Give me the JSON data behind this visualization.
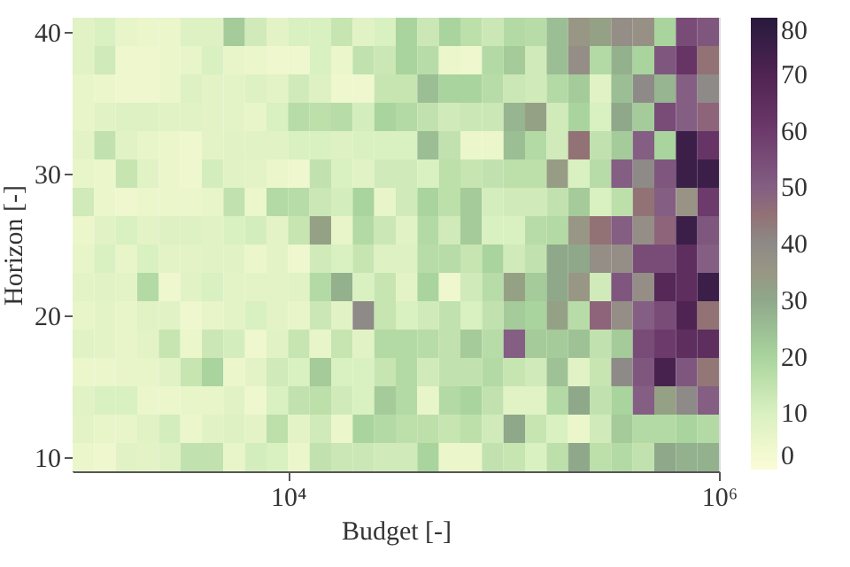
{
  "chart_data": {
    "type": "heatmap",
    "xlabel": "Budget [-]",
    "ylabel": "Horizon [-]",
    "log": "x",
    "x": [
      1122,
      1413,
      1778,
      2239,
      2818,
      3548,
      4467,
      5623,
      7079,
      8913,
      11220,
      14130,
      17780,
      22390,
      28180,
      35480,
      44670,
      56230,
      70790,
      89130,
      112200,
      141300,
      177800,
      223900,
      281800,
      354800,
      446700,
      562300,
      707900,
      891300
    ],
    "y": [
      40,
      38,
      36,
      34,
      32,
      30,
      28,
      26,
      24,
      22,
      20,
      18,
      16,
      14,
      12,
      10
    ],
    "xlim": [
      1000,
      1000000
    ],
    "xticks": [
      {
        "value": 10000,
        "label": "10⁴"
      },
      {
        "value": 1000000,
        "label": "10⁶"
      }
    ],
    "ylim": [
      9,
      41
    ],
    "yticks": [
      10,
      20,
      30,
      40
    ],
    "clim": [
      0,
      80
    ],
    "cticks": [
      0,
      10,
      20,
      30,
      40,
      50,
      60,
      70,
      80
    ],
    "grid": false,
    "cells": [
      [
        8,
        10,
        6,
        5,
        5,
        9,
        9,
        22,
        12,
        7,
        10,
        10,
        14,
        8,
        10,
        20,
        13,
        20,
        16,
        13,
        18,
        17,
        25,
        35,
        32,
        38,
        37,
        20,
        55,
        52
      ],
      [
        8,
        12,
        4,
        4,
        5,
        6,
        10,
        6,
        5,
        4,
        4,
        10,
        5,
        15,
        13,
        20,
        17,
        5,
        4,
        18,
        22,
        12,
        25,
        38,
        18,
        28,
        20,
        52,
        62,
        45
      ],
      [
        6,
        5,
        4,
        4,
        5,
        9,
        7,
        7,
        9,
        7,
        12,
        9,
        4,
        4,
        14,
        14,
        25,
        20,
        20,
        17,
        13,
        12,
        18,
        22,
        8,
        25,
        40,
        27,
        50,
        40
      ],
      [
        6,
        8,
        9,
        9,
        8,
        8,
        7,
        7,
        6,
        10,
        17,
        16,
        17,
        11,
        20,
        18,
        15,
        12,
        13,
        13,
        27,
        32,
        12,
        20,
        10,
        30,
        22,
        55,
        50,
        48
      ],
      [
        7,
        15,
        8,
        6,
        5,
        4,
        7,
        8,
        8,
        8,
        10,
        10,
        9,
        10,
        10,
        10,
        25,
        15,
        5,
        5,
        25,
        18,
        12,
        45,
        15,
        22,
        50,
        20,
        75,
        62
      ],
      [
        6,
        5,
        14,
        8,
        5,
        4,
        11,
        8,
        7,
        5,
        4,
        15,
        10,
        8,
        12,
        12,
        10,
        16,
        14,
        15,
        16,
        16,
        33,
        10,
        17,
        50,
        40,
        52,
        75,
        75
      ],
      [
        12,
        5,
        4,
        5,
        5,
        5,
        6,
        15,
        5,
        18,
        17,
        13,
        11,
        20,
        6,
        12,
        20,
        16,
        22,
        11,
        12,
        12,
        15,
        22,
        10,
        16,
        45,
        50,
        36,
        60
      ],
      [
        5,
        8,
        10,
        7,
        9,
        9,
        8,
        10,
        11,
        7,
        14,
        32,
        6,
        18,
        13,
        8,
        18,
        12,
        22,
        10,
        10,
        17,
        18,
        35,
        45,
        50,
        38,
        48,
        75,
        52
      ],
      [
        6,
        10,
        6,
        10,
        7,
        7,
        8,
        8,
        5,
        7,
        4,
        12,
        10,
        14,
        9,
        9,
        17,
        17,
        14,
        20,
        12,
        15,
        30,
        30,
        38,
        38,
        55,
        55,
        65,
        50
      ],
      [
        7,
        8,
        7,
        18,
        4,
        8,
        10,
        7,
        7,
        7,
        8,
        18,
        28,
        10,
        14,
        7,
        20,
        4,
        12,
        17,
        32,
        22,
        30,
        35,
        12,
        52,
        38,
        68,
        65,
        75
      ],
      [
        6,
        7,
        6,
        8,
        8,
        4,
        6,
        7,
        10,
        7,
        6,
        13,
        8,
        40,
        14,
        10,
        12,
        15,
        10,
        15,
        22,
        20,
        32,
        17,
        48,
        38,
        50,
        55,
        70,
        45
      ],
      [
        8,
        7,
        6,
        7,
        14,
        5,
        13,
        11,
        4,
        8,
        14,
        6,
        14,
        8,
        18,
        18,
        17,
        15,
        22,
        17,
        50,
        22,
        22,
        24,
        15,
        22,
        55,
        60,
        65,
        65
      ],
      [
        5,
        5,
        6,
        6,
        8,
        14,
        20,
        5,
        7,
        12,
        10,
        22,
        10,
        10,
        14,
        18,
        12,
        15,
        15,
        18,
        14,
        12,
        24,
        8,
        14,
        40,
        52,
        72,
        52,
        44
      ],
      [
        8,
        10,
        10,
        5,
        5,
        6,
        6,
        8,
        4,
        10,
        15,
        16,
        12,
        10,
        22,
        18,
        6,
        18,
        20,
        15,
        8,
        8,
        18,
        30,
        15,
        20,
        50,
        32,
        40,
        50
      ],
      [
        7,
        6,
        6,
        8,
        11,
        5,
        8,
        9,
        7,
        16,
        7,
        12,
        5,
        20,
        18,
        16,
        16,
        14,
        16,
        12,
        30,
        14,
        10,
        5,
        12,
        22,
        18,
        18,
        20,
        18
      ],
      [
        5,
        4,
        8,
        7,
        9,
        15,
        15,
        6,
        11,
        10,
        5,
        15,
        13,
        13,
        12,
        12,
        20,
        5,
        5,
        15,
        14,
        10,
        16,
        30,
        16,
        18,
        15,
        30,
        28,
        28
      ]
    ]
  }
}
